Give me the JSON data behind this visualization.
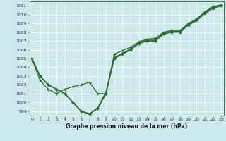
{
  "xlabel": "Graphe pression niveau de la mer (hPa)",
  "ylim": [
    998.5,
    1011.5
  ],
  "xlim": [
    -0.3,
    23.3
  ],
  "yticks": [
    999,
    1000,
    1001,
    1002,
    1003,
    1004,
    1005,
    1006,
    1007,
    1008,
    1009,
    1010,
    1011
  ],
  "xticks": [
    0,
    1,
    2,
    3,
    4,
    5,
    6,
    7,
    8,
    9,
    10,
    11,
    12,
    13,
    14,
    15,
    16,
    17,
    18,
    19,
    20,
    21,
    22,
    23
  ],
  "line_color": "#2d6a2d",
  "bg_color": "#cce8ed",
  "grid_color": "#b0d4da",
  "line_width": 0.9,
  "marker_size": 3.0,
  "series": [
    [
      1005,
      1003,
      1002,
      1001.5,
      1001,
      1000,
      999.0,
      998.7,
      999.3,
      1001.0,
      1005.0,
      1005.5,
      1006.0,
      1006.7,
      1007.0,
      1007.0,
      1007.8,
      1008.0,
      1008.0,
      1008.8,
      1009.3,
      1010.1,
      1010.7,
      1011.0
    ],
    [
      1005,
      1003,
      1002,
      1001.5,
      1001,
      1000,
      999.0,
      998.7,
      999.4,
      1001.2,
      1005.1,
      1005.6,
      1006.1,
      1006.8,
      1007.1,
      1007.1,
      1007.9,
      1008.1,
      1008.1,
      1008.9,
      1009.4,
      1010.2,
      1010.8,
      1011.0
    ],
    [
      1005,
      1002.5,
      1001.5,
      1001.0,
      1001.5,
      1001.8,
      1002.0,
      1002.3,
      1001.0,
      1001.0,
      1005.5,
      1005.9,
      1006.3,
      1006.9,
      1007.2,
      1007.3,
      1008.0,
      1008.2,
      1008.2,
      1009.0,
      1009.5,
      1010.3,
      1010.9,
      1011.1
    ],
    [
      1005,
      1003,
      1002,
      1001.5,
      1001,
      1000,
      999.0,
      998.7,
      999.3,
      1001.0,
      1005.0,
      1005.5,
      1006.0,
      1006.7,
      1007.0,
      1007.0,
      1007.8,
      1008.0,
      1008.0,
      1008.9,
      1009.5,
      1010.3,
      1010.9,
      1011.1
    ]
  ]
}
